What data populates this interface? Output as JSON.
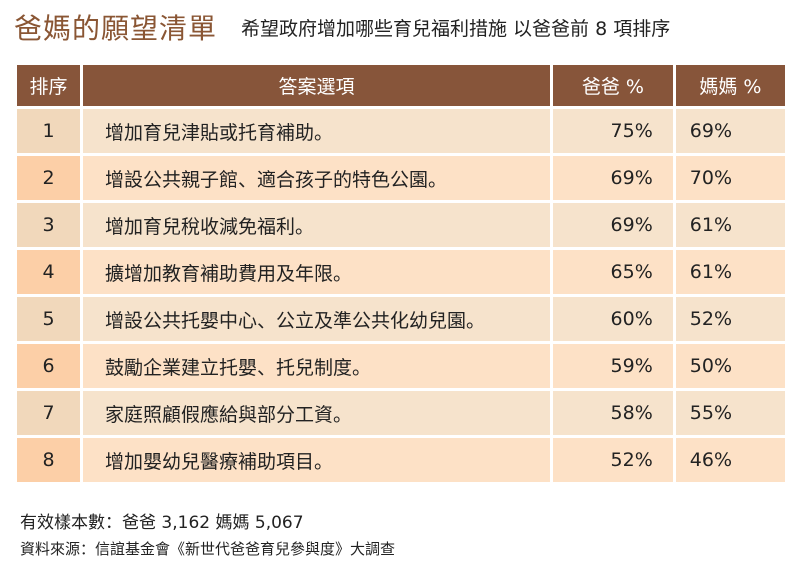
{
  "header": {
    "title": "爸媽的願望清單",
    "subtitle": "希望政府增加哪些育兒福利措施 以爸爸前 8 項排序"
  },
  "table": {
    "columns": [
      "排序",
      "答案選項",
      "爸爸 %",
      "媽媽 %"
    ],
    "rows": [
      {
        "rank": "1",
        "answer": "增加育兒津貼或托育補助。",
        "dad": "75%",
        "mom": "69%"
      },
      {
        "rank": "2",
        "answer": "增設公共親子館、適合孩子的特色公園。",
        "dad": "69%",
        "mom": "70%"
      },
      {
        "rank": "3",
        "answer": "增加育兒稅收減免福利。",
        "dad": "69%",
        "mom": "61%"
      },
      {
        "rank": "4",
        "answer": "擴增加教育補助費用及年限。",
        "dad": "65%",
        "mom": "61%"
      },
      {
        "rank": "5",
        "answer": "增設公共托嬰中心、公立及準公共化幼兒園。",
        "dad": "60%",
        "mom": "52%"
      },
      {
        "rank": "6",
        "answer": "鼓勵企業建立托嬰、托兒制度。",
        "dad": "59%",
        "mom": "50%"
      },
      {
        "rank": "7",
        "answer": "家庭照顧假應給與部分工資。",
        "dad": "58%",
        "mom": "55%"
      },
      {
        "rank": "8",
        "answer": "增加嬰幼兒醫療補助項目。",
        "dad": "52%",
        "mom": "46%"
      }
    ]
  },
  "footer": {
    "sample_size": "有效樣本數：爸爸 3,162 媽媽 5,067",
    "source": "資料來源：信誼基金會《新世代爸爸育兒參與度》大調查"
  },
  "colors": {
    "title": "#8a5634",
    "header_bg": "#87553a",
    "row_odd": "#f6e3cc",
    "row_even": "#fde1c6",
    "rank_odd": "#f1d8bb",
    "rank_even": "#fccfa7"
  },
  "chart_data": {
    "type": "table",
    "title": "爸媽的願望清單",
    "subtitle": "希望政府增加哪些育兒福利措施 以爸爸前 8 項排序",
    "columns": [
      "排序",
      "答案選項",
      "爸爸 %",
      "媽媽 %"
    ],
    "categories": [
      "增加育兒津貼或托育補助。",
      "增設公共親子館、適合孩子的特色公園。",
      "增加育兒稅收減免福利。",
      "擴增加教育補助費用及年限。",
      "增設公共托嬰中心、公立及準公共化幼兒園。",
      "鼓勵企業建立托嬰、托兒制度。",
      "家庭照顧假應給與部分工資。",
      "增加嬰幼兒醫療補助項目。"
    ],
    "series": [
      {
        "name": "爸爸 %",
        "values": [
          75,
          69,
          69,
          65,
          60,
          59,
          58,
          52
        ]
      },
      {
        "name": "媽媽 %",
        "values": [
          69,
          70,
          61,
          61,
          52,
          50,
          55,
          46
        ]
      }
    ],
    "annotations": [
      "有效樣本數：爸爸 3,162 媽媽 5,067",
      "資料來源：信誼基金會《新世代爸爸育兒參與度》大調查"
    ]
  }
}
